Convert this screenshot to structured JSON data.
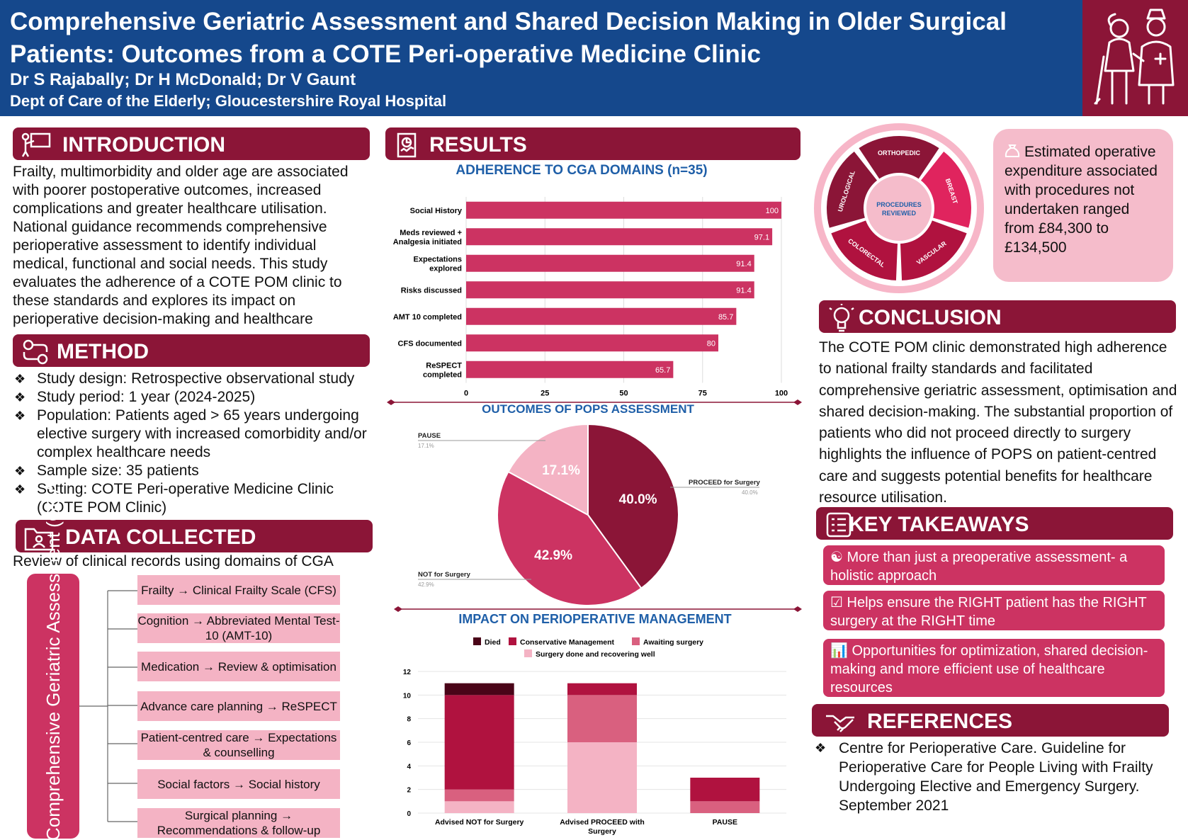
{
  "header": {
    "title": "Comprehensive Geriatric Assessment and Shared Decision Making in Older Surgical Patients: Outcomes from a COTE Peri-operative Medicine Clinic",
    "authors": "Dr S Rajabally; Dr H McDonald; Dr V Gaunt",
    "department": "Dept of Care of the Elderly; Gloucestershire Royal Hospital"
  },
  "introduction": {
    "heading": "INTRODUCTION",
    "text": "Frailty, multimorbidity and older age are associated with poorer postoperative outcomes, increased complications and greater healthcare utilisation. National guidance recommends comprehensive perioperative assessment to identify individual medical, functional and social needs. This study evaluates the adherence of a COTE POM clinic to these standards and explores its impact on perioperative decision-making and healthcare resource utilisation."
  },
  "method": {
    "heading": "METHOD",
    "bullets": [
      "Study design: Retrospective observational study",
      "Study period: 1 year (2024-2025)",
      "Population: Patients aged > 65 years undergoing elective surgery with increased comorbidity and/or complex healthcare needs",
      "Sample size: 35 patients",
      "Setting: COTE Peri-operative Medicine Clinic (COTE POM Clinic)"
    ]
  },
  "data_collected": {
    "heading": "DATA COLLECTED",
    "intro": "Review of clinical records using domains of CGA",
    "side_label": "Comprehensive Geriatric Assessment (GCA)",
    "items": [
      "Frailty → Clinical Frailty Scale (CFS)",
      "Cognition → Abbreviated Mental Test-10 (AMT-10)",
      "Medication → Review & optimisation",
      "Advance care planning → ReSPECT",
      "Patient-centred care → Expectations & counselling",
      "Social factors → Social history",
      "Surgical planning → Recommendations & follow-up"
    ]
  },
  "results": {
    "heading": "RESULTS"
  },
  "chart_data": [
    {
      "type": "bar",
      "title": "ADHERENCE TO CGA DOMAINS (n=35)",
      "orientation": "horizontal",
      "categories": [
        "Social History",
        "Meds reviewed + Analgesia initiated",
        "Expectations explored",
        "Risks discussed",
        "AMT 10 completed",
        "CFS documented",
        "ReSPECT completed"
      ],
      "values": [
        100,
        97.1,
        91.4,
        91.4,
        85.7,
        80,
        65.7
      ],
      "value_labels": [
        "100",
        "97.1",
        "91.4",
        "91.4",
        "85.7",
        "80",
        "65.7"
      ],
      "xlim": [
        0,
        100
      ],
      "xticks": [
        "0",
        "25",
        "50",
        "75",
        "100"
      ],
      "color": "#cc3362"
    },
    {
      "type": "pie",
      "title": "OUTCOMES OF POPS ASSESSMENT",
      "slices": [
        {
          "label": "PROCEED for Surgery",
          "value": 40.0,
          "pct": "40.0%",
          "callout_value": "40.0%",
          "color": "#8b1537"
        },
        {
          "label": "NOT for Surgery",
          "value": 42.9,
          "pct": "42.9%",
          "callout_value": "42.9%",
          "color": "#cc3362"
        },
        {
          "label": "PAUSE",
          "value": 17.1,
          "pct": "17.1%",
          "callout_value": "17.1%",
          "color": "#f4b3c4"
        }
      ]
    },
    {
      "type": "bar",
      "stacked": true,
      "title": "IMPACT ON PERIOPERATIVE MANAGEMENT",
      "categories": [
        "Advised NOT for Surgery",
        "Advised PROCEED with Surgery",
        "PAUSE"
      ],
      "series": [
        {
          "name": "Surgery done and recovering well",
          "values": [
            1,
            6,
            0
          ],
          "color": "#f4b3c4"
        },
        {
          "name": "Awaiting surgery",
          "values": [
            1,
            4,
            1
          ],
          "color": "#d9607f"
        },
        {
          "name": "Conservative Management",
          "values": [
            8,
            1,
            2
          ],
          "color": "#b0123f"
        },
        {
          "name": "Died",
          "values": [
            1,
            0,
            0
          ],
          "color": "#4a0418"
        }
      ],
      "legend_order": [
        "Died",
        "Conservative Management",
        "Awaiting surgery",
        "Surgery done and recovering well"
      ],
      "ylim": [
        0,
        12
      ],
      "yticks": [
        "0",
        "2",
        "4",
        "6",
        "8",
        "10",
        "12"
      ]
    }
  ],
  "procedures": {
    "center": "PROCEDURES REVIEWED",
    "segments": [
      "ORTHOPEDIC",
      "BREAST",
      "VASCULAR",
      "COLORECTAL",
      "UROLOGICAL"
    ]
  },
  "cost": {
    "text": "Estimated operative expenditure associated with procedures not undertaken ranged from £84,300 to £134,500"
  },
  "conclusion": {
    "heading": "CONCLUSION",
    "text": "The COTE POM clinic demonstrated high adherence to national frailty standards and facilitated comprehensive geriatric assessment, optimisation and shared decision-making. The substantial proportion of patients who did not proceed directly to surgery highlights the influence of POPS on patient-centred care and suggests potential benefits for healthcare resource utilisation."
  },
  "key_takeaways": {
    "heading": "KEY TAKEAWAYS",
    "items": [
      "More than just a preoperative assessment- a holistic approach",
      "Helps ensure the RIGHT patient has the RIGHT surgery at the RIGHT time",
      "Opportunities for optimization, shared decision-making and more efficient use of healthcare resources"
    ],
    "icons": [
      "people-icon",
      "checkbox-icon",
      "growth-chart-icon"
    ]
  },
  "references": {
    "heading": "REFERENCES",
    "items": [
      "Centre for Perioperative Care. Guideline for Perioperative Care for People Living with Frailty Undergoing Elective and Emergency Surgery. September 2021"
    ]
  },
  "colors": {
    "header_blue": "#15488c",
    "maroon": "#8b1537",
    "pink": "#cc3362",
    "light_pink": "#f4b3c4",
    "chart_title_blue": "#1f5fa8"
  }
}
